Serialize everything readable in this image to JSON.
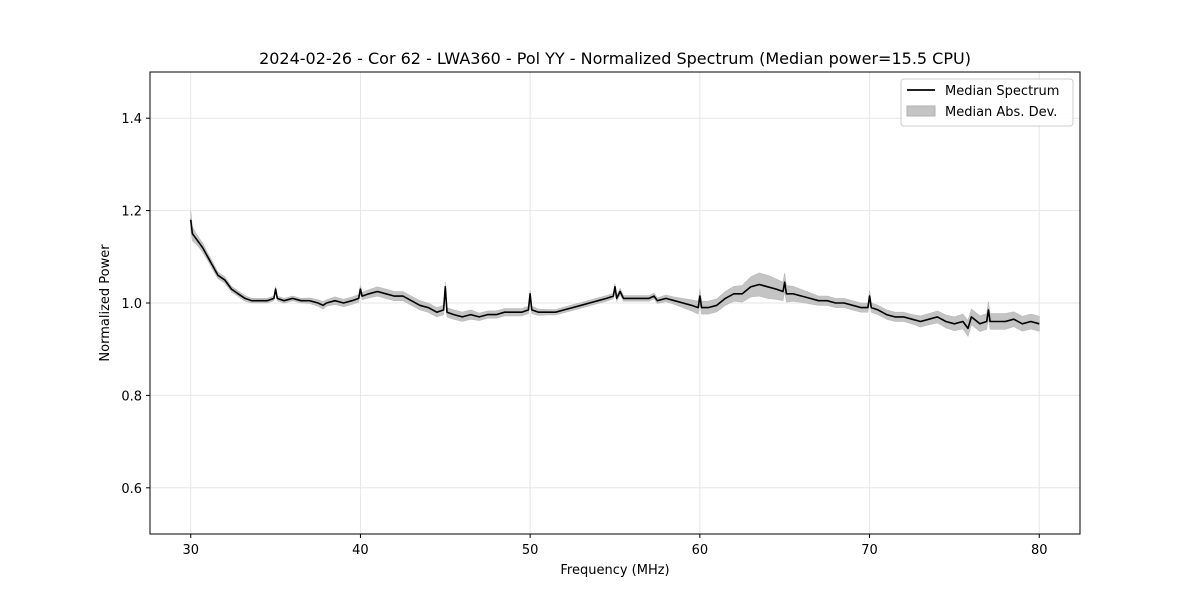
{
  "chart_data": {
    "type": "line",
    "title": "2024-02-26 - Cor 62 - LWA360 - Pol YY - Normalized Spectrum (Median power=15.5 CPU)",
    "xlabel": "Frequency (MHz)",
    "ylabel": "Normalized Power",
    "xlim": [
      27.6,
      82.4
    ],
    "ylim": [
      0.5,
      1.5
    ],
    "xticks": [
      30,
      40,
      50,
      60,
      70,
      80
    ],
    "yticks": [
      0.6,
      0.8,
      1.0,
      1.2,
      1.4
    ],
    "xtick_labels": [
      "30",
      "40",
      "50",
      "60",
      "70",
      "80"
    ],
    "ytick_labels": [
      "0.6",
      "0.8",
      "1.0",
      "1.2",
      "1.4"
    ],
    "grid": true,
    "legend_position": "top-right",
    "series": [
      {
        "name": "Median Spectrum",
        "kind": "line",
        "color": "#000000",
        "x": [
          30.0,
          30.1,
          30.3,
          30.5,
          30.7,
          31.0,
          31.3,
          31.6,
          32.0,
          32.4,
          32.8,
          33.2,
          33.6,
          34.0,
          34.5,
          34.9,
          35.0,
          35.1,
          35.5,
          36.0,
          36.5,
          37.0,
          37.5,
          37.8,
          38.0,
          38.5,
          39.0,
          39.5,
          39.9,
          40.0,
          40.1,
          40.5,
          41.0,
          41.5,
          42.0,
          42.5,
          43.0,
          43.5,
          44.0,
          44.5,
          44.9,
          45.0,
          45.1,
          45.5,
          46.0,
          46.5,
          47.0,
          47.5,
          48.0,
          48.5,
          49.0,
          49.5,
          49.9,
          50.0,
          50.1,
          50.5,
          51.0,
          51.5,
          52.0,
          52.5,
          53.0,
          53.5,
          54.0,
          54.5,
          54.9,
          55.0,
          55.1,
          55.3,
          55.5,
          56.0,
          56.5,
          57.0,
          57.3,
          57.5,
          58.0,
          58.5,
          59.0,
          59.5,
          59.9,
          60.0,
          60.1,
          60.5,
          61.0,
          61.5,
          62.0,
          62.5,
          63.0,
          63.5,
          64.0,
          64.5,
          64.9,
          65.0,
          65.1,
          65.5,
          66.0,
          66.5,
          67.0,
          67.5,
          68.0,
          68.5,
          69.0,
          69.5,
          69.9,
          70.0,
          70.1,
          70.5,
          71.0,
          71.5,
          72.0,
          72.5,
          73.0,
          73.5,
          74.0,
          74.5,
          75.0,
          75.5,
          75.8,
          76.0,
          76.5,
          76.9,
          77.0,
          77.1,
          77.5,
          78.0,
          78.5,
          79.0,
          79.5,
          80.0
        ],
        "y": [
          1.18,
          1.15,
          1.14,
          1.13,
          1.12,
          1.1,
          1.08,
          1.06,
          1.05,
          1.03,
          1.02,
          1.01,
          1.005,
          1.005,
          1.005,
          1.01,
          1.03,
          1.01,
          1.005,
          1.01,
          1.005,
          1.005,
          1.0,
          0.995,
          1.0,
          1.005,
          1.0,
          1.005,
          1.01,
          1.03,
          1.015,
          1.02,
          1.025,
          1.02,
          1.015,
          1.015,
          1.005,
          0.995,
          0.99,
          0.98,
          0.985,
          1.035,
          0.98,
          0.975,
          0.97,
          0.975,
          0.97,
          0.975,
          0.975,
          0.98,
          0.98,
          0.98,
          0.985,
          1.02,
          0.985,
          0.98,
          0.98,
          0.98,
          0.985,
          0.99,
          0.995,
          1.0,
          1.005,
          1.01,
          1.015,
          1.035,
          1.01,
          1.025,
          1.01,
          1.01,
          1.01,
          1.01,
          1.015,
          1.005,
          1.01,
          1.005,
          1.0,
          0.995,
          0.99,
          1.015,
          0.99,
          0.99,
          0.995,
          1.01,
          1.02,
          1.02,
          1.035,
          1.04,
          1.035,
          1.03,
          1.025,
          1.045,
          1.02,
          1.02,
          1.015,
          1.01,
          1.005,
          1.005,
          1.0,
          1.0,
          0.995,
          0.99,
          0.99,
          1.015,
          0.99,
          0.985,
          0.975,
          0.97,
          0.97,
          0.965,
          0.96,
          0.965,
          0.97,
          0.96,
          0.955,
          0.96,
          0.945,
          0.97,
          0.955,
          0.96,
          0.985,
          0.96,
          0.96,
          0.96,
          0.965,
          0.955,
          0.96,
          0.955
        ]
      },
      {
        "name": "Median Abs. Dev.",
        "kind": "band",
        "color": "#c4c4c4",
        "half_width": [
          0.02,
          0.015,
          0.012,
          0.01,
          0.01,
          0.008,
          0.008,
          0.007,
          0.007,
          0.006,
          0.006,
          0.006,
          0.005,
          0.005,
          0.005,
          0.005,
          0.006,
          0.005,
          0.005,
          0.005,
          0.005,
          0.006,
          0.007,
          0.008,
          0.007,
          0.008,
          0.008,
          0.008,
          0.008,
          0.008,
          0.008,
          0.009,
          0.01,
          0.01,
          0.01,
          0.01,
          0.01,
          0.01,
          0.01,
          0.01,
          0.01,
          0.01,
          0.01,
          0.01,
          0.01,
          0.01,
          0.008,
          0.008,
          0.008,
          0.008,
          0.008,
          0.008,
          0.008,
          0.008,
          0.008,
          0.007,
          0.006,
          0.006,
          0.006,
          0.006,
          0.006,
          0.006,
          0.006,
          0.006,
          0.006,
          0.007,
          0.006,
          0.007,
          0.006,
          0.006,
          0.006,
          0.006,
          0.006,
          0.006,
          0.007,
          0.008,
          0.01,
          0.012,
          0.014,
          0.015,
          0.014,
          0.014,
          0.014,
          0.015,
          0.016,
          0.018,
          0.022,
          0.025,
          0.025,
          0.022,
          0.02,
          0.02,
          0.018,
          0.016,
          0.014,
          0.012,
          0.01,
          0.01,
          0.01,
          0.01,
          0.01,
          0.01,
          0.01,
          0.012,
          0.01,
          0.01,
          0.01,
          0.01,
          0.01,
          0.01,
          0.012,
          0.012,
          0.013,
          0.014,
          0.015,
          0.016,
          0.017,
          0.017,
          0.017,
          0.017,
          0.018,
          0.017,
          0.017,
          0.017,
          0.016,
          0.016,
          0.016,
          0.016
        ]
      }
    ]
  }
}
